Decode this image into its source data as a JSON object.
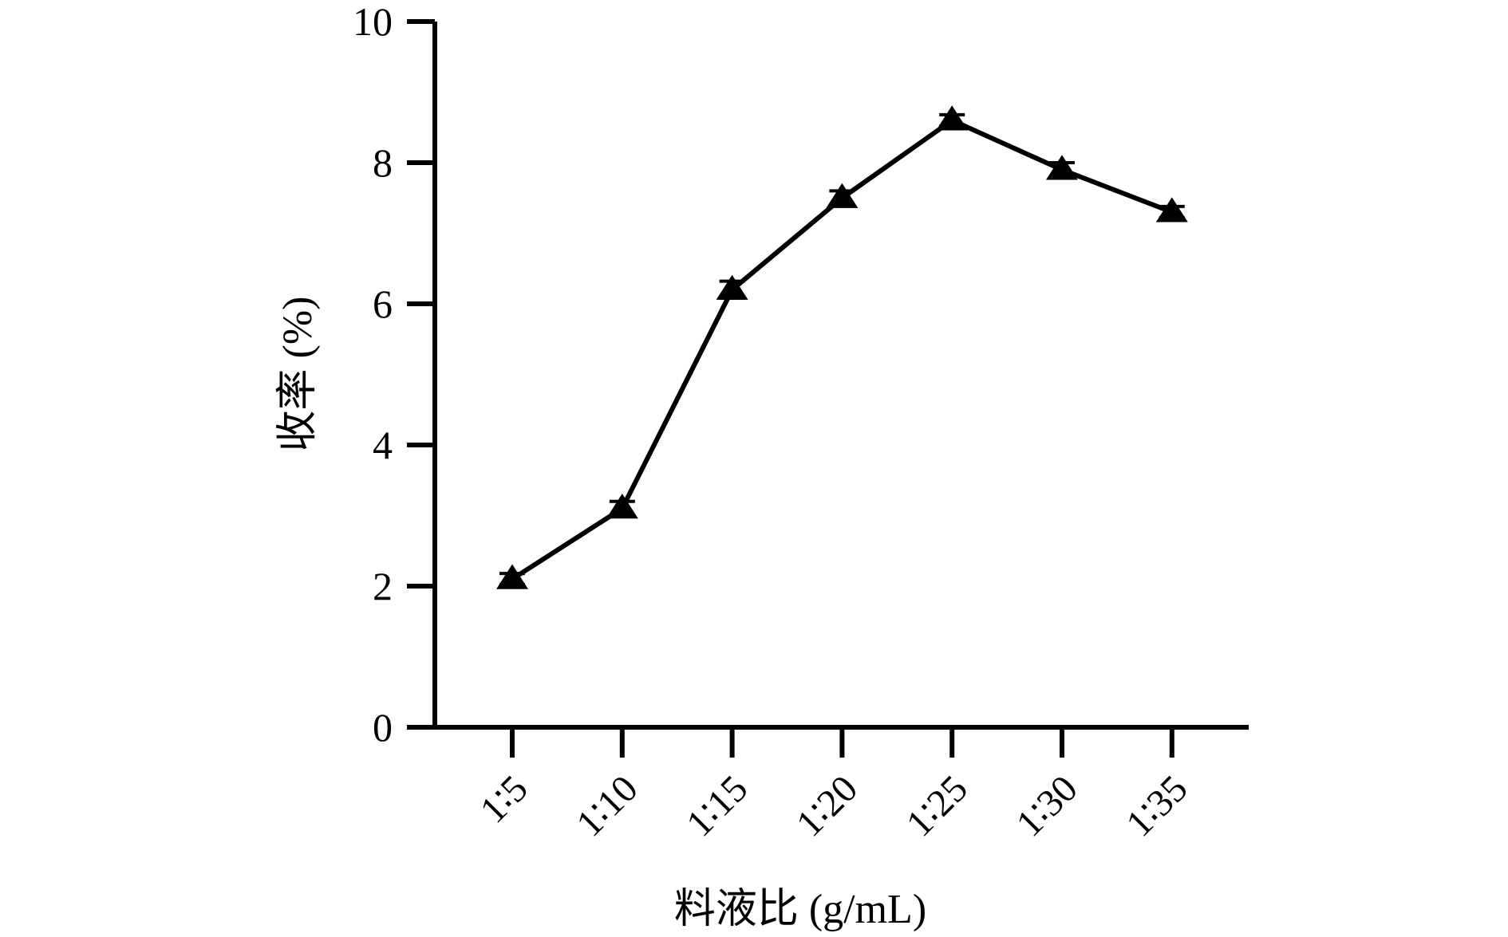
{
  "chart_data": {
    "type": "line",
    "title": "",
    "xlabel": "料液比 (g/mL)",
    "ylabel": "收率 (%)",
    "categories": [
      "1∶5",
      "1∶10",
      "1∶15",
      "1∶20",
      "1∶25",
      "1∶30",
      "1∶35"
    ],
    "series": [
      {
        "values": [
          2.1,
          3.1,
          6.2,
          7.5,
          8.6,
          7.9,
          7.3
        ],
        "error": [
          0.08,
          0.1,
          0.12,
          0.1,
          0.08,
          0.1,
          0.08
        ]
      }
    ],
    "ylim": [
      0,
      10
    ],
    "yticks": [
      0,
      2,
      4,
      6,
      8,
      10
    ],
    "grid": false,
    "legend": "none",
    "marker": "triangle",
    "color": "#000000"
  }
}
